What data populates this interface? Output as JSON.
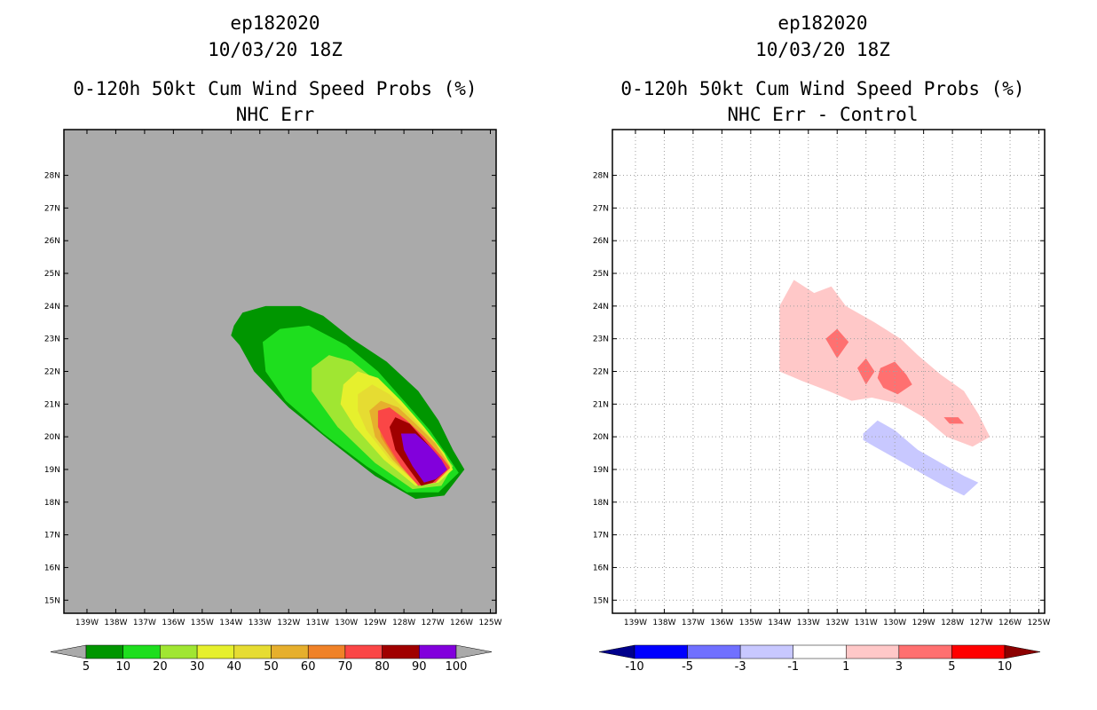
{
  "chart_data": [
    {
      "type": "heatmap",
      "storm_id": "ep182020",
      "datetime": "10/03/20 18Z",
      "title": "0-120h 50kt Cum Wind Speed Probs (%)",
      "subtitle": "NHC Err",
      "x_ticks": [
        "139W",
        "138W",
        "137W",
        "136W",
        "135W",
        "134W",
        "133W",
        "132W",
        "131W",
        "130W",
        "129W",
        "128W",
        "127W",
        "126W",
        "125W"
      ],
      "y_ticks": [
        "28N",
        "27N",
        "26N",
        "25N",
        "24N",
        "23N",
        "22N",
        "21N",
        "20N",
        "19N",
        "18N",
        "17N",
        "16N",
        "15N"
      ],
      "xlim": [
        -139.8,
        -124.8
      ],
      "ylim": [
        14.6,
        29.4
      ],
      "grid": false,
      "background": "#aaaaaa",
      "colorbar": {
        "levels": [
          "5",
          "10",
          "20",
          "30",
          "40",
          "50",
          "60",
          "70",
          "80",
          "90",
          "100"
        ],
        "colors": [
          "#009600",
          "#1ede1e",
          "#a0e632",
          "#e6f02d",
          "#e6dc32",
          "#e6af2d",
          "#f08228",
          "#fa4646",
          "#a00000",
          "#8200dc"
        ],
        "under_color": "#aaaaaa",
        "over_color": "#aaaaaa"
      },
      "contours": [
        {
          "level": "5",
          "polygon": [
            [
              -133.9,
              23.4
            ],
            [
              -133.6,
              23.8
            ],
            [
              -132.8,
              24.0
            ],
            [
              -131.6,
              24.0
            ],
            [
              -130.8,
              23.7
            ],
            [
              -129.8,
              23.0
            ],
            [
              -128.6,
              22.3
            ],
            [
              -127.5,
              21.4
            ],
            [
              -126.8,
              20.5
            ],
            [
              -126.3,
              19.6
            ],
            [
              -125.9,
              19.0
            ],
            [
              -126.6,
              18.2
            ],
            [
              -127.6,
              18.1
            ],
            [
              -129.0,
              18.8
            ],
            [
              -130.6,
              19.9
            ],
            [
              -132.0,
              20.9
            ],
            [
              -133.2,
              22.0
            ],
            [
              -133.7,
              22.8
            ],
            [
              -134.0,
              23.1
            ]
          ]
        },
        {
          "level": "10",
          "polygon": [
            [
              -132.9,
              22.9
            ],
            [
              -132.3,
              23.3
            ],
            [
              -131.3,
              23.4
            ],
            [
              -130.0,
              22.8
            ],
            [
              -128.9,
              22.0
            ],
            [
              -127.9,
              21.0
            ],
            [
              -127.1,
              20.2
            ],
            [
              -126.4,
              19.3
            ],
            [
              -126.1,
              18.9
            ],
            [
              -126.8,
              18.3
            ],
            [
              -127.9,
              18.3
            ],
            [
              -129.3,
              19.1
            ],
            [
              -130.8,
              20.1
            ],
            [
              -132.1,
              21.1
            ],
            [
              -132.8,
              22.0
            ]
          ]
        },
        {
          "level": "20",
          "polygon": [
            [
              -131.2,
              22.1
            ],
            [
              -130.6,
              22.5
            ],
            [
              -129.8,
              22.3
            ],
            [
              -128.8,
              21.6
            ],
            [
              -127.8,
              20.7
            ],
            [
              -127.0,
              19.9
            ],
            [
              -126.3,
              19.1
            ],
            [
              -126.7,
              18.5
            ],
            [
              -127.7,
              18.4
            ],
            [
              -129.0,
              19.2
            ],
            [
              -130.3,
              20.3
            ],
            [
              -131.2,
              21.4
            ]
          ]
        },
        {
          "level": "30",
          "polygon": [
            [
              -130.1,
              21.6
            ],
            [
              -129.6,
              22.0
            ],
            [
              -128.9,
              21.8
            ],
            [
              -128.1,
              21.1
            ],
            [
              -127.3,
              20.3
            ],
            [
              -126.6,
              19.5
            ],
            [
              -126.3,
              19.0
            ],
            [
              -126.8,
              18.6
            ],
            [
              -127.6,
              18.5
            ],
            [
              -128.7,
              19.3
            ],
            [
              -129.7,
              20.3
            ],
            [
              -130.2,
              21.0
            ]
          ]
        },
        {
          "level": "40",
          "polygon": [
            [
              -129.6,
              21.3
            ],
            [
              -129.1,
              21.6
            ],
            [
              -128.5,
              21.3
            ],
            [
              -127.8,
              20.7
            ],
            [
              -127.1,
              20.0
            ],
            [
              -126.5,
              19.3
            ],
            [
              -126.4,
              19.0
            ],
            [
              -126.9,
              18.6
            ],
            [
              -127.6,
              18.6
            ],
            [
              -128.5,
              19.3
            ],
            [
              -129.3,
              20.2
            ],
            [
              -129.6,
              20.8
            ]
          ]
        },
        {
          "level": "50",
          "polygon": [
            [
              -129.2,
              20.8
            ],
            [
              -128.8,
              21.1
            ],
            [
              -128.2,
              20.9
            ],
            [
              -127.6,
              20.4
            ],
            [
              -126.9,
              19.8
            ],
            [
              -126.4,
              19.1
            ],
            [
              -127.0,
              18.6
            ],
            [
              -127.6,
              18.6
            ],
            [
              -128.4,
              19.3
            ],
            [
              -129.0,
              20.0
            ]
          ]
        },
        {
          "level": "60",
          "polygon": [
            [
              -128.9,
              20.6
            ],
            [
              -128.6,
              20.8
            ],
            [
              -128.1,
              20.6
            ],
            [
              -127.6,
              20.2
            ],
            [
              -126.9,
              19.6
            ],
            [
              -126.4,
              19.05
            ],
            [
              -127.0,
              18.6
            ],
            [
              -127.6,
              18.6
            ],
            [
              -128.3,
              19.3
            ],
            [
              -128.8,
              20.0
            ]
          ]
        },
        {
          "level": "70",
          "polygon": [
            [
              -128.9,
              20.8
            ],
            [
              -128.5,
              20.9
            ],
            [
              -127.9,
              20.5
            ],
            [
              -127.3,
              20.0
            ],
            [
              -126.7,
              19.4
            ],
            [
              -126.4,
              19.05
            ],
            [
              -126.9,
              18.6
            ],
            [
              -127.5,
              18.5
            ],
            [
              -128.1,
              19.1
            ],
            [
              -128.6,
              19.8
            ],
            [
              -128.9,
              20.3
            ]
          ]
        },
        {
          "level": "80",
          "polygon": [
            [
              -128.5,
              20.3
            ],
            [
              -128.3,
              20.6
            ],
            [
              -127.8,
              20.4
            ],
            [
              -127.3,
              19.9
            ],
            [
              -126.8,
              19.4
            ],
            [
              -126.5,
              19.0
            ],
            [
              -127.0,
              18.6
            ],
            [
              -127.4,
              18.5
            ],
            [
              -127.9,
              19.1
            ],
            [
              -128.3,
              19.6
            ]
          ]
        },
        {
          "level": "90",
          "polygon": [
            [
              -128.1,
              20.1
            ],
            [
              -127.6,
              20.1
            ],
            [
              -127.1,
              19.7
            ],
            [
              -126.7,
              19.3
            ],
            [
              -126.5,
              19.0
            ],
            [
              -126.9,
              18.7
            ],
            [
              -127.3,
              18.6
            ],
            [
              -127.7,
              19.1
            ],
            [
              -128.0,
              19.6
            ]
          ]
        }
      ]
    },
    {
      "type": "heatmap",
      "storm_id": "ep182020",
      "datetime": "10/03/20 18Z",
      "title": "0-120h 50kt Cum Wind Speed Probs (%)",
      "subtitle": "NHC Err - Control",
      "x_ticks": [
        "139W",
        "138W",
        "137W",
        "136W",
        "135W",
        "134W",
        "133W",
        "132W",
        "131W",
        "130W",
        "129W",
        "128W",
        "127W",
        "126W",
        "125W"
      ],
      "y_ticks": [
        "28N",
        "27N",
        "26N",
        "25N",
        "24N",
        "23N",
        "22N",
        "21N",
        "20N",
        "19N",
        "18N",
        "17N",
        "16N",
        "15N"
      ],
      "xlim": [
        -139.8,
        -124.8
      ],
      "ylim": [
        14.6,
        29.4
      ],
      "grid": true,
      "background": "#ffffff",
      "colorbar": {
        "levels": [
          "-10",
          "-5",
          "-3",
          "-1",
          "1",
          "3",
          "5",
          "10"
        ],
        "colors": [
          "#0000ff",
          "#7070ff",
          "#c8c8ff",
          "#ffffff",
          "#ffc8c8",
          "#ff7070",
          "#ff0000"
        ],
        "under_color": "#00008c",
        "over_color": "#8c0000"
      },
      "contours": [
        {
          "level": "1",
          "polygon": [
            [
              -134.0,
              24.0
            ],
            [
              -133.5,
              24.8
            ],
            [
              -132.8,
              24.4
            ],
            [
              -132.2,
              24.6
            ],
            [
              -131.7,
              24.0
            ],
            [
              -130.7,
              23.5
            ],
            [
              -129.8,
              23.0
            ],
            [
              -129.2,
              22.5
            ],
            [
              -128.4,
              21.9
            ],
            [
              -127.6,
              21.4
            ],
            [
              -127.1,
              20.7
            ],
            [
              -126.7,
              20.0
            ],
            [
              -127.3,
              19.7
            ],
            [
              -128.2,
              20.0
            ],
            [
              -129.0,
              20.6
            ],
            [
              -129.8,
              21.0
            ],
            [
              -130.8,
              21.2
            ],
            [
              -131.5,
              21.1
            ],
            [
              -132.3,
              21.4
            ],
            [
              -133.2,
              21.7
            ],
            [
              -134.0,
              22.0
            ],
            [
              -134.0,
              23.0
            ]
          ]
        },
        {
          "level": "3",
          "polygon": [
            [
              -132.4,
              23.0
            ],
            [
              -132.0,
              23.3
            ],
            [
              -131.6,
              22.9
            ],
            [
              -132.0,
              22.4
            ]
          ]
        },
        {
          "level": "3",
          "polygon": [
            [
              -131.3,
              22.1
            ],
            [
              -131.0,
              22.4
            ],
            [
              -130.7,
              22.0
            ],
            [
              -131.0,
              21.6
            ]
          ]
        },
        {
          "level": "3",
          "polygon": [
            [
              -130.5,
              22.1
            ],
            [
              -130.0,
              22.3
            ],
            [
              -129.6,
              21.9
            ],
            [
              -129.4,
              21.6
            ],
            [
              -129.9,
              21.3
            ],
            [
              -130.4,
              21.5
            ],
            [
              -130.6,
              21.8
            ]
          ]
        },
        {
          "level": "3",
          "polygon": [
            [
              -128.3,
              20.6
            ],
            [
              -127.8,
              20.6
            ],
            [
              -127.6,
              20.4
            ],
            [
              -128.1,
              20.4
            ]
          ]
        },
        {
          "level": "-1",
          "polygon": [
            [
              -131.1,
              20.1
            ],
            [
              -130.6,
              20.5
            ],
            [
              -130.0,
              20.2
            ],
            [
              -129.2,
              19.6
            ],
            [
              -128.4,
              19.2
            ],
            [
              -127.6,
              18.8
            ],
            [
              -127.1,
              18.6
            ],
            [
              -127.6,
              18.2
            ],
            [
              -128.3,
              18.5
            ],
            [
              -129.1,
              18.9
            ],
            [
              -129.9,
              19.3
            ],
            [
              -130.7,
              19.7
            ],
            [
              -131.1,
              19.9
            ]
          ]
        }
      ]
    }
  ]
}
